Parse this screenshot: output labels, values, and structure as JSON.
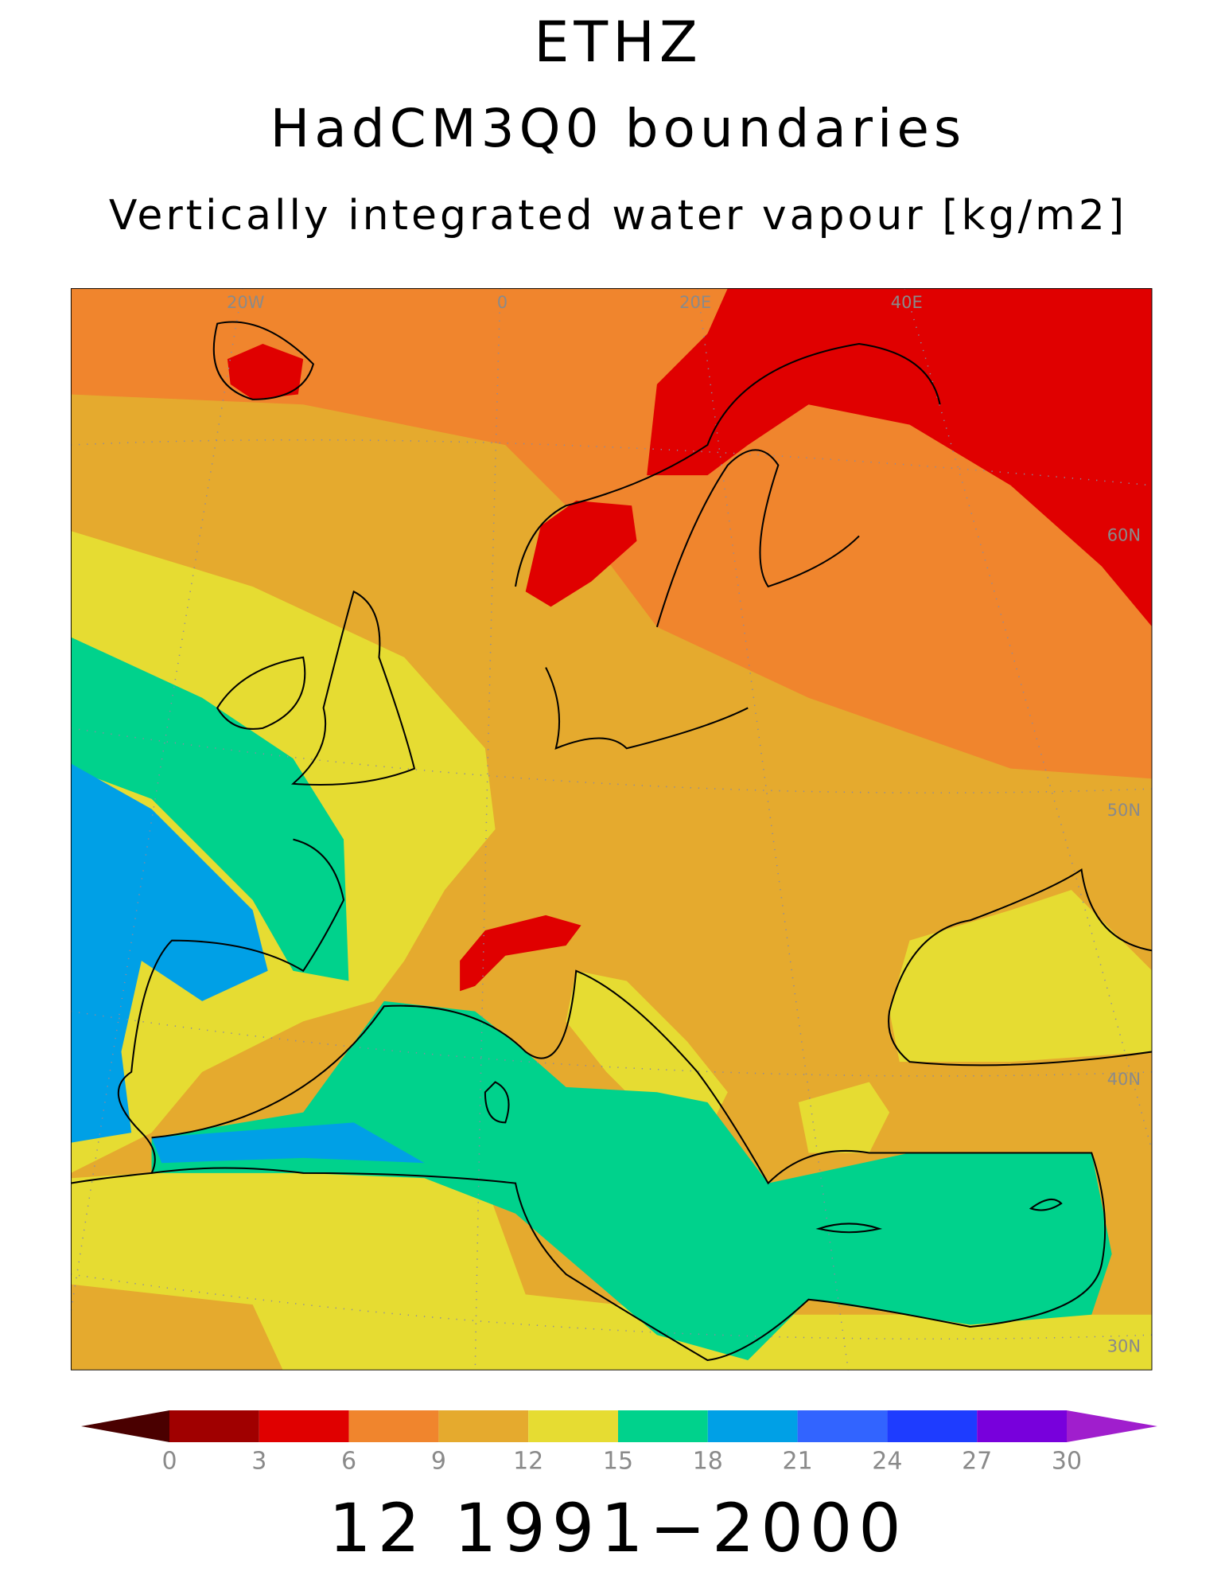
{
  "header": {
    "title": "ETHZ",
    "subtitle": "HadCM3Q0 boundaries",
    "variable": "Vertically integrated water vapour [kg/m2]"
  },
  "map": {
    "graticule_labels": [
      "20W",
      "0",
      "20E",
      "40E",
      "60N",
      "50N",
      "40N",
      "30N"
    ]
  },
  "colorbar": {
    "ticks": [
      0,
      3,
      6,
      9,
      12,
      15,
      18,
      21,
      24,
      27,
      30
    ],
    "colors": [
      "#4a0000",
      "#a00000",
      "#e00000",
      "#f0852d",
      "#e5aa2e",
      "#e6dc32",
      "#00d28c",
      "#00a0e6",
      "#3264ff",
      "#1e3cff",
      "#7800dc",
      "#a01ecd"
    ]
  },
  "footer": "12 1991−2000"
}
